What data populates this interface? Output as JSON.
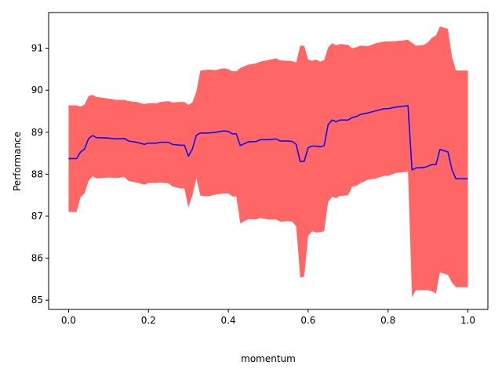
{
  "chart_data": {
    "type": "line",
    "title": "",
    "xlabel": "momentum",
    "ylabel": "Performance",
    "xlim": [
      -0.05,
      1.05
    ],
    "ylim": [
      84.78,
      91.85
    ],
    "xticks": [
      0.0,
      0.2,
      0.4,
      0.6,
      0.8,
      1.0
    ],
    "xtick_labels": [
      "0.0",
      "0.2",
      "0.4",
      "0.6",
      "0.8",
      "1.0"
    ],
    "yticks": [
      85,
      86,
      87,
      88,
      89,
      90,
      91
    ],
    "ytick_labels": [
      "85",
      "86",
      "87",
      "88",
      "89",
      "90",
      "91"
    ],
    "grid": false,
    "legend": "none",
    "colors": {
      "line": "#0000ff",
      "band": "#ff6666"
    },
    "series": [
      {
        "style": "line",
        "points": [
          [
            0.0,
            88.37
          ],
          [
            0.02,
            88.37
          ],
          [
            0.03,
            88.53
          ],
          [
            0.04,
            88.6
          ],
          [
            0.05,
            88.85
          ],
          [
            0.06,
            88.92
          ],
          [
            0.07,
            88.87
          ],
          [
            0.1,
            88.86
          ],
          [
            0.12,
            88.84
          ],
          [
            0.14,
            88.85
          ],
          [
            0.15,
            88.79
          ],
          [
            0.17,
            88.76
          ],
          [
            0.19,
            88.71
          ],
          [
            0.2,
            88.74
          ],
          [
            0.22,
            88.74
          ],
          [
            0.23,
            88.76
          ],
          [
            0.25,
            88.76
          ],
          [
            0.26,
            88.71
          ],
          [
            0.28,
            88.69
          ],
          [
            0.29,
            88.69
          ],
          [
            0.3,
            88.43
          ],
          [
            0.31,
            88.6
          ],
          [
            0.32,
            88.93
          ],
          [
            0.33,
            88.98
          ],
          [
            0.35,
            88.98
          ],
          [
            0.37,
            89.0
          ],
          [
            0.38,
            89.02
          ],
          [
            0.39,
            89.03
          ],
          [
            0.4,
            89.02
          ],
          [
            0.41,
            88.96
          ],
          [
            0.42,
            88.96
          ],
          [
            0.43,
            88.68
          ],
          [
            0.45,
            88.77
          ],
          [
            0.47,
            88.78
          ],
          [
            0.48,
            88.82
          ],
          [
            0.5,
            88.82
          ],
          [
            0.52,
            88.84
          ],
          [
            0.53,
            88.79
          ],
          [
            0.55,
            88.79
          ],
          [
            0.56,
            88.78
          ],
          [
            0.57,
            88.71
          ],
          [
            0.58,
            88.3
          ],
          [
            0.59,
            88.31
          ],
          [
            0.6,
            88.63
          ],
          [
            0.61,
            88.67
          ],
          [
            0.62,
            88.67
          ],
          [
            0.63,
            88.65
          ],
          [
            0.64,
            88.68
          ],
          [
            0.65,
            89.18
          ],
          [
            0.66,
            89.29
          ],
          [
            0.67,
            89.25
          ],
          [
            0.68,
            89.29
          ],
          [
            0.7,
            89.29
          ],
          [
            0.71,
            89.35
          ],
          [
            0.72,
            89.37
          ],
          [
            0.73,
            89.42
          ],
          [
            0.75,
            89.46
          ],
          [
            0.77,
            89.51
          ],
          [
            0.79,
            89.56
          ],
          [
            0.8,
            89.56
          ],
          [
            0.82,
            89.6
          ],
          [
            0.85,
            89.63
          ],
          [
            0.86,
            88.1
          ],
          [
            0.87,
            88.15
          ],
          [
            0.89,
            88.16
          ],
          [
            0.9,
            88.19
          ],
          [
            0.91,
            88.23
          ],
          [
            0.92,
            88.23
          ],
          [
            0.93,
            88.59
          ],
          [
            0.95,
            88.53
          ],
          [
            0.96,
            88.11
          ],
          [
            0.97,
            87.89
          ],
          [
            0.98,
            87.89
          ],
          [
            1.0,
            87.89
          ]
        ]
      },
      {
        "style": "band",
        "upper": [
          [
            0.0,
            89.64
          ],
          [
            0.02,
            89.64
          ],
          [
            0.03,
            89.61
          ],
          [
            0.04,
            89.66
          ],
          [
            0.05,
            89.86
          ],
          [
            0.06,
            89.89
          ],
          [
            0.07,
            89.84
          ],
          [
            0.1,
            89.8
          ],
          [
            0.12,
            89.77
          ],
          [
            0.14,
            89.77
          ],
          [
            0.15,
            89.74
          ],
          [
            0.17,
            89.72
          ],
          [
            0.19,
            89.67
          ],
          [
            0.2,
            89.69
          ],
          [
            0.22,
            89.69
          ],
          [
            0.23,
            89.72
          ],
          [
            0.25,
            89.74
          ],
          [
            0.26,
            89.71
          ],
          [
            0.28,
            89.72
          ],
          [
            0.29,
            89.72
          ],
          [
            0.3,
            89.65
          ],
          [
            0.31,
            89.71
          ],
          [
            0.32,
            89.97
          ],
          [
            0.33,
            90.47
          ],
          [
            0.35,
            90.49
          ],
          [
            0.37,
            90.48
          ],
          [
            0.38,
            90.51
          ],
          [
            0.39,
            90.52
          ],
          [
            0.4,
            90.5
          ],
          [
            0.41,
            90.45
          ],
          [
            0.42,
            90.45
          ],
          [
            0.43,
            90.53
          ],
          [
            0.45,
            90.61
          ],
          [
            0.47,
            90.64
          ],
          [
            0.48,
            90.68
          ],
          [
            0.5,
            90.72
          ],
          [
            0.52,
            90.76
          ],
          [
            0.53,
            90.71
          ],
          [
            0.55,
            90.7
          ],
          [
            0.56,
            90.69
          ],
          [
            0.57,
            90.66
          ],
          [
            0.58,
            91.06
          ],
          [
            0.59,
            91.06
          ],
          [
            0.6,
            90.73
          ],
          [
            0.61,
            90.7
          ],
          [
            0.62,
            90.73
          ],
          [
            0.63,
            90.68
          ],
          [
            0.64,
            90.72
          ],
          [
            0.65,
            91.02
          ],
          [
            0.66,
            91.12
          ],
          [
            0.67,
            91.07
          ],
          [
            0.68,
            91.1
          ],
          [
            0.7,
            91.08
          ],
          [
            0.71,
            91.0
          ],
          [
            0.72,
            91.02
          ],
          [
            0.73,
            91.06
          ],
          [
            0.75,
            91.05
          ],
          [
            0.77,
            91.12
          ],
          [
            0.79,
            91.16
          ],
          [
            0.8,
            91.16
          ],
          [
            0.82,
            91.17
          ],
          [
            0.85,
            91.2
          ],
          [
            0.86,
            91.13
          ],
          [
            0.87,
            91.06
          ],
          [
            0.89,
            91.08
          ],
          [
            0.9,
            91.14
          ],
          [
            0.91,
            91.25
          ],
          [
            0.92,
            91.3
          ],
          [
            0.93,
            91.52
          ],
          [
            0.95,
            91.46
          ],
          [
            0.96,
            90.8
          ],
          [
            0.97,
            90.47
          ],
          [
            0.98,
            90.47
          ],
          [
            1.0,
            90.47
          ]
        ],
        "lower": [
          [
            0.0,
            87.1
          ],
          [
            0.02,
            87.1
          ],
          [
            0.03,
            87.45
          ],
          [
            0.04,
            87.54
          ],
          [
            0.05,
            87.84
          ],
          [
            0.06,
            87.95
          ],
          [
            0.07,
            87.9
          ],
          [
            0.1,
            87.92
          ],
          [
            0.12,
            87.91
          ],
          [
            0.14,
            87.93
          ],
          [
            0.15,
            87.84
          ],
          [
            0.17,
            87.8
          ],
          [
            0.19,
            87.75
          ],
          [
            0.2,
            87.79
          ],
          [
            0.22,
            87.79
          ],
          [
            0.23,
            87.8
          ],
          [
            0.25,
            87.78
          ],
          [
            0.26,
            87.71
          ],
          [
            0.28,
            87.66
          ],
          [
            0.29,
            87.66
          ],
          [
            0.3,
            87.21
          ],
          [
            0.31,
            87.49
          ],
          [
            0.32,
            87.9
          ],
          [
            0.33,
            87.49
          ],
          [
            0.35,
            87.47
          ],
          [
            0.37,
            87.52
          ],
          [
            0.38,
            87.53
          ],
          [
            0.39,
            87.54
          ],
          [
            0.4,
            87.54
          ],
          [
            0.41,
            87.47
          ],
          [
            0.42,
            87.47
          ],
          [
            0.43,
            86.83
          ],
          [
            0.45,
            86.93
          ],
          [
            0.47,
            86.92
          ],
          [
            0.48,
            86.96
          ],
          [
            0.5,
            86.92
          ],
          [
            0.52,
            86.92
          ],
          [
            0.53,
            86.87
          ],
          [
            0.55,
            86.88
          ],
          [
            0.56,
            86.87
          ],
          [
            0.57,
            86.76
          ],
          [
            0.58,
            85.54
          ],
          [
            0.59,
            85.56
          ],
          [
            0.6,
            86.53
          ],
          [
            0.61,
            86.64
          ],
          [
            0.62,
            86.61
          ],
          [
            0.63,
            86.62
          ],
          [
            0.64,
            86.64
          ],
          [
            0.65,
            87.34
          ],
          [
            0.66,
            87.46
          ],
          [
            0.67,
            87.43
          ],
          [
            0.68,
            87.48
          ],
          [
            0.7,
            87.5
          ],
          [
            0.71,
            87.7
          ],
          [
            0.72,
            87.72
          ],
          [
            0.73,
            87.78
          ],
          [
            0.75,
            87.87
          ],
          [
            0.77,
            87.9
          ],
          [
            0.79,
            87.96
          ],
          [
            0.8,
            87.96
          ],
          [
            0.82,
            88.03
          ],
          [
            0.85,
            88.06
          ],
          [
            0.86,
            85.07
          ],
          [
            0.87,
            85.24
          ],
          [
            0.89,
            85.24
          ],
          [
            0.9,
            85.24
          ],
          [
            0.91,
            85.21
          ],
          [
            0.92,
            85.16
          ],
          [
            0.93,
            85.66
          ],
          [
            0.95,
            85.6
          ],
          [
            0.96,
            85.42
          ],
          [
            0.97,
            85.31
          ],
          [
            0.98,
            85.31
          ],
          [
            1.0,
            85.31
          ]
        ]
      }
    ]
  }
}
